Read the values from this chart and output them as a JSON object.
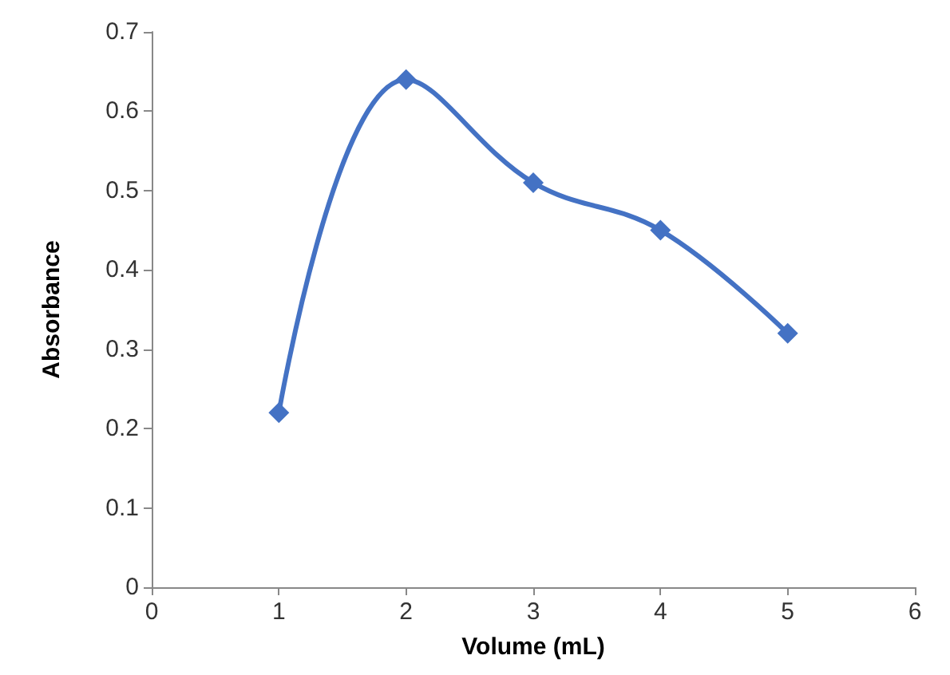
{
  "chart_data": {
    "type": "line",
    "xlabel": "Volume (mL)",
    "ylabel": "Absorbance",
    "x": [
      1,
      2,
      3,
      4,
      5
    ],
    "series": [
      {
        "color": "#4472c4",
        "values": [
          0.22,
          0.64,
          0.51,
          0.45,
          0.32
        ]
      }
    ],
    "xlim": [
      0,
      6
    ],
    "xticks": [
      0,
      1,
      2,
      3,
      4,
      5,
      6
    ],
    "ylim": [
      0,
      0.7
    ],
    "yticks": [
      0,
      0.1,
      0.2,
      0.3,
      0.4,
      0.5,
      0.6,
      0.7
    ],
    "grid": false,
    "marker": "diamond",
    "line_style": "solid"
  }
}
